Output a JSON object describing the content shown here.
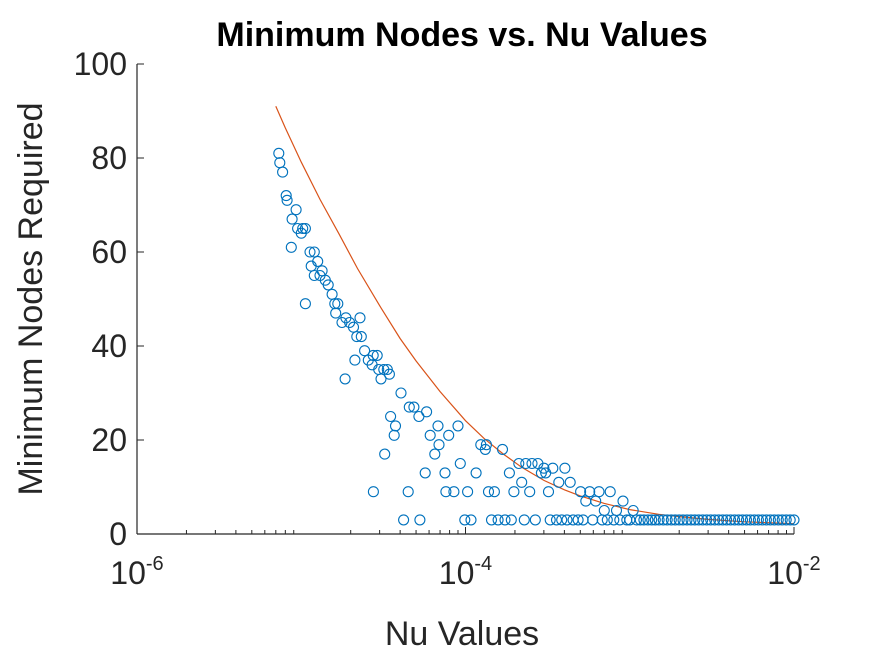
{
  "chart_data": {
    "type": "scatter",
    "title": "Minimum Nodes vs. Nu Values",
    "xlabel": "Nu Values",
    "ylabel": "Minimum Nodes Required",
    "x_scale": "log",
    "xlim": [
      1e-06,
      0.01
    ],
    "ylim": [
      0,
      100
    ],
    "grid": false,
    "x_ticks": [
      {
        "base": "10",
        "exp": "-6",
        "value": 1e-06
      },
      {
        "base": "10",
        "exp": "-4",
        "value": 0.0001
      },
      {
        "base": "10",
        "exp": "-2",
        "value": 0.01
      }
    ],
    "y_ticks": [
      {
        "label": "0",
        "value": 0
      },
      {
        "label": "20",
        "value": 20
      },
      {
        "label": "40",
        "value": 40
      },
      {
        "label": "60",
        "value": 60
      },
      {
        "label": "80",
        "value": 80
      },
      {
        "label": "100",
        "value": 100
      }
    ],
    "colors": {
      "points": "#0072BD",
      "fit": "#D95319"
    },
    "series": [
      {
        "kind": "scatter",
        "points": [
          [
            7.3e-06,
            81
          ],
          [
            7.4e-06,
            79
          ],
          [
            7.7e-06,
            77
          ],
          [
            8.1e-06,
            72
          ],
          [
            8.2e-06,
            71
          ],
          [
            8.8e-06,
            67
          ],
          [
            8.7e-06,
            61
          ],
          [
            9.3e-06,
            69
          ],
          [
            9.5e-06,
            65
          ],
          [
            1e-05,
            64
          ],
          [
            1.02e-05,
            65
          ],
          [
            1.06e-05,
            65
          ],
          [
            1.06e-05,
            49
          ],
          [
            1.13e-05,
            60
          ],
          [
            1.2e-05,
            60
          ],
          [
            1.15e-05,
            57
          ],
          [
            1.2e-05,
            55
          ],
          [
            1.26e-05,
            58
          ],
          [
            1.3e-05,
            55
          ],
          [
            1.34e-05,
            56
          ],
          [
            1.4e-05,
            54
          ],
          [
            1.46e-05,
            53
          ],
          [
            1.54e-05,
            51
          ],
          [
            1.6e-05,
            49
          ],
          [
            1.67e-05,
            49
          ],
          [
            1.62e-05,
            47
          ],
          [
            1.77e-05,
            45
          ],
          [
            1.87e-05,
            46
          ],
          [
            1.85e-05,
            33
          ],
          [
            1.97e-05,
            45
          ],
          [
            2.08e-05,
            44
          ],
          [
            2.18e-05,
            42
          ],
          [
            2.12e-05,
            37
          ],
          [
            2.32e-05,
            42
          ],
          [
            2.28e-05,
            46
          ],
          [
            2.43e-05,
            39
          ],
          [
            2.56e-05,
            37
          ],
          [
            2.7e-05,
            36
          ],
          [
            2.74e-05,
            38
          ],
          [
            2.9e-05,
            38
          ],
          [
            2.96e-05,
            35
          ],
          [
            3.06e-05,
            33
          ],
          [
            3.18e-05,
            35
          ],
          [
            3.22e-05,
            17
          ],
          [
            3.34e-05,
            35
          ],
          [
            3.44e-05,
            34
          ],
          [
            2.75e-05,
            9
          ],
          [
            3.5e-05,
            25
          ],
          [
            3.75e-05,
            23
          ],
          [
            3.68e-05,
            21
          ],
          [
            4.05e-05,
            30
          ],
          [
            4.2e-05,
            3
          ],
          [
            4.48e-05,
            9
          ],
          [
            4.55e-05,
            27
          ],
          [
            4.85e-05,
            27
          ],
          [
            5.2e-05,
            25
          ],
          [
            5.28e-05,
            3
          ],
          [
            5.8e-05,
            26
          ],
          [
            5.68e-05,
            13
          ],
          [
            6.1e-05,
            21
          ],
          [
            6.5e-05,
            17
          ],
          [
            6.8e-05,
            23
          ],
          [
            6.9e-05,
            19
          ],
          [
            7.5e-05,
            13
          ],
          [
            7.6e-05,
            9
          ],
          [
            7.9e-05,
            21
          ],
          [
            8.5e-05,
            9
          ],
          [
            9e-05,
            23
          ],
          [
            9.3e-05,
            15
          ],
          [
            9.9e-05,
            3
          ],
          [
            0.000103,
            9
          ],
          [
            0.000108,
            3
          ],
          [
            0.000116,
            13
          ],
          [
            0.000124,
            19
          ],
          [
            0.000132,
            18
          ],
          [
            0.000134,
            19
          ],
          [
            0.000138,
            9
          ],
          [
            0.000144,
            3
          ],
          [
            0.00015,
            9
          ],
          [
            0.000158,
            3
          ],
          [
            0.000168,
            18
          ],
          [
            0.000174,
            3
          ],
          [
            0.000185,
            13
          ],
          [
            0.00019,
            3
          ],
          [
            0.000197,
            9
          ],
          [
            0.000211,
            15
          ],
          [
            0.00022,
            11
          ],
          [
            0.000228,
            3
          ],
          [
            0.000233,
            15
          ],
          [
            0.000246,
            9
          ],
          [
            0.000254,
            15
          ],
          [
            0.000266,
            3
          ],
          [
            0.000276,
            15
          ],
          [
            0.00029,
            13
          ],
          [
            0.0003,
            14
          ],
          [
            0.000308,
            13
          ],
          [
            0.00032,
            9
          ],
          [
            0.000328,
            3
          ],
          [
            0.00034,
            14
          ],
          [
            0.000358,
            3
          ],
          [
            0.00037,
            11
          ],
          [
            0.000385,
            3
          ],
          [
            0.000403,
            14
          ],
          [
            0.000415,
            3
          ],
          [
            0.000434,
            11
          ],
          [
            0.000452,
            3
          ],
          [
            0.000485,
            3
          ],
          [
            0.000502,
            9
          ],
          [
            0.00052,
            3
          ],
          [
            0.00054,
            7
          ],
          [
            0.00057,
            9
          ],
          [
            0.000595,
            3
          ],
          [
            0.00062,
            7
          ],
          [
            0.00065,
            9
          ],
          [
            0.00068,
            3
          ],
          [
            0.0007,
            5
          ],
          [
            0.00073,
            3
          ],
          [
            0.00076,
            9
          ],
          [
            0.0008,
            3
          ],
          [
            0.00083,
            5
          ],
          [
            0.00087,
            3
          ],
          [
            0.00091,
            7
          ],
          [
            0.00096,
            3
          ],
          [
            0.001,
            3
          ],
          [
            0.00105,
            5
          ],
          [
            0.0011,
            3
          ],
          [
            0.00116,
            3
          ],
          [
            0.00122,
            3
          ],
          [
            0.00129,
            3
          ],
          [
            0.00136,
            3
          ],
          [
            0.00143,
            3
          ],
          [
            0.00151,
            3
          ],
          [
            0.0016,
            3
          ],
          [
            0.00169,
            3
          ],
          [
            0.00179,
            3
          ],
          [
            0.00189,
            3
          ],
          [
            0.002,
            3
          ],
          [
            0.00211,
            3
          ],
          [
            0.00223,
            3
          ],
          [
            0.00236,
            3
          ],
          [
            0.00249,
            3
          ],
          [
            0.00263,
            3
          ],
          [
            0.00278,
            3
          ],
          [
            0.00294,
            3
          ],
          [
            0.00311,
            3
          ],
          [
            0.00329,
            3
          ],
          [
            0.00348,
            3
          ],
          [
            0.00368,
            3
          ],
          [
            0.00389,
            3
          ],
          [
            0.00411,
            3
          ],
          [
            0.00435,
            3
          ],
          [
            0.0046,
            3
          ],
          [
            0.00486,
            3
          ],
          [
            0.00514,
            3
          ],
          [
            0.00543,
            3
          ],
          [
            0.00574,
            3
          ],
          [
            0.00607,
            3
          ],
          [
            0.00642,
            3
          ],
          [
            0.00679,
            3
          ],
          [
            0.00718,
            3
          ],
          [
            0.00759,
            3
          ],
          [
            0.00802,
            3
          ],
          [
            0.00848,
            3
          ],
          [
            0.00897,
            3
          ],
          [
            0.00948,
            3
          ],
          [
            0.01,
            3
          ]
        ]
      },
      {
        "kind": "line",
        "points": [
          [
            7e-06,
            91
          ],
          [
            8e-06,
            86.4
          ],
          [
            1e-05,
            79.1
          ],
          [
            1.3e-05,
            71.2
          ],
          [
            1.7e-05,
            63.8
          ],
          [
            2.2e-05,
            56.5
          ],
          [
            3e-05,
            48.6
          ],
          [
            4e-05,
            41.6
          ],
          [
            5e-05,
            36.8
          ],
          [
            7e-05,
            30.3
          ],
          [
            0.0001,
            24.1
          ],
          [
            0.00013,
            20.3
          ],
          [
            0.00017,
            17.0
          ],
          [
            0.00022,
            14.2
          ],
          [
            0.0003,
            11.4
          ],
          [
            0.0004,
            9.4
          ],
          [
            0.0005,
            8.1
          ],
          [
            0.0007,
            6.5
          ],
          [
            0.001,
            5.2
          ],
          [
            0.0015,
            4.2
          ],
          [
            0.002,
            3.7
          ],
          [
            0.003,
            3.1
          ],
          [
            0.005,
            2.6
          ],
          [
            0.007,
            2.4
          ],
          [
            0.01,
            2.2
          ]
        ]
      }
    ]
  }
}
